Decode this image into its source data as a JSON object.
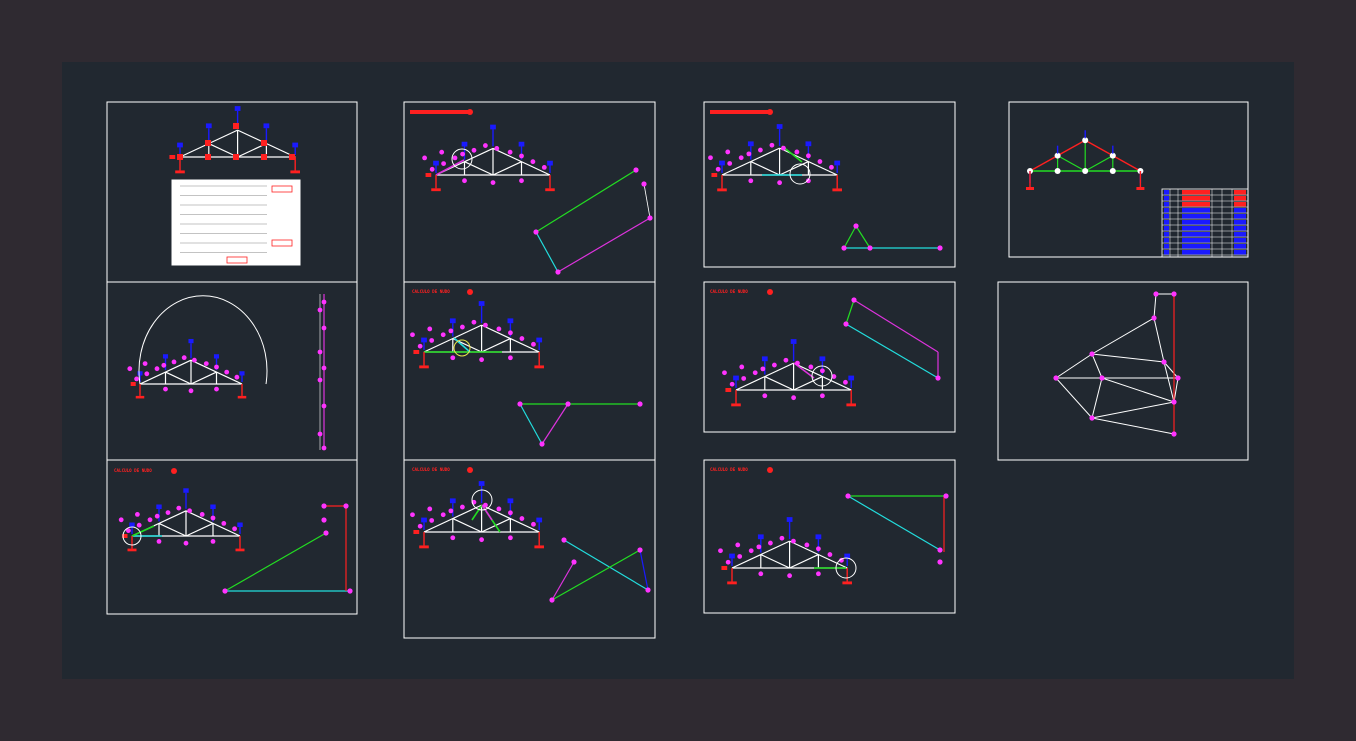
{
  "colors": {
    "background": "#2f2a31",
    "sheet": "#212830",
    "frame": "#ffffff",
    "member": "#ffffff",
    "node": "#ff33ff",
    "load": "#1a1aff",
    "support": "#ff2020",
    "green": "#22dd22",
    "cyan": "#22dddd",
    "magenta": "#dd33dd"
  },
  "labels": {
    "node_calc": "CALCULO DE NUDO"
  },
  "icons": {
    "support": "pin-support-icon",
    "node_marker": "node-dot-icon",
    "load_arrow": "load-arrow-icon"
  }
}
